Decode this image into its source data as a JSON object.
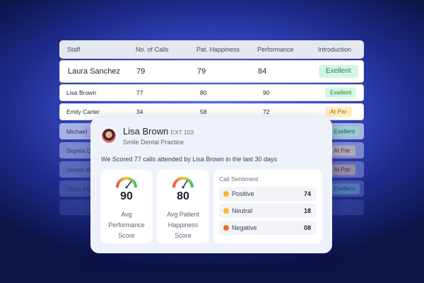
{
  "table": {
    "columns": [
      "Staff",
      "No. of Calls",
      "Pat. Happiness",
      "Performance",
      "Introduction"
    ],
    "rows": [
      {
        "staff": "Laura Sanchez",
        "calls": "79",
        "happiness": "79",
        "performance": "84",
        "intro": "Exellent"
      },
      {
        "staff": "Lisa Brown",
        "calls": "77",
        "happiness": "80",
        "performance": "90",
        "intro": "Exellent"
      },
      {
        "staff": "Emily Carter",
        "calls": "34",
        "happiness": "58",
        "performance": "72",
        "intro": "At Par"
      },
      {
        "staff": "Michael",
        "intro": "Exellent"
      },
      {
        "staff": "Sophia D",
        "intro": "At Par"
      },
      {
        "staff": "James W",
        "intro": "At Par"
      },
      {
        "staff": "Olivia Ma",
        "intro": "Exellent"
      }
    ]
  },
  "card": {
    "name": "Lisa Brown",
    "ext": "EXT 103",
    "practice": "Smile Dental Practice",
    "summary": "We Scored 77 calls attended by Lisa Brown in the last 30 days",
    "stats": [
      {
        "value": "90",
        "label": "Avg\nPerformance\nScore",
        "level": 0.9
      },
      {
        "value": "80",
        "label": "Avg Patient\nHappiness\nScore",
        "level": 0.8
      }
    ],
    "sentiment": {
      "title": "Call Sentiment",
      "items": [
        {
          "label": "Positive",
          "count": "74",
          "icon": "happy-face-icon"
        },
        {
          "label": "Neutral",
          "count": "18",
          "icon": "neutral-face-icon"
        },
        {
          "label": "Negative",
          "count": "08",
          "icon": "angry-face-icon"
        }
      ]
    }
  },
  "colors": {
    "excellent_bg": "#d4f5e3",
    "excellent_text": "#1c8a4d",
    "atpar_bg": "#fdeec4",
    "atpar_text": "#a86c08"
  }
}
